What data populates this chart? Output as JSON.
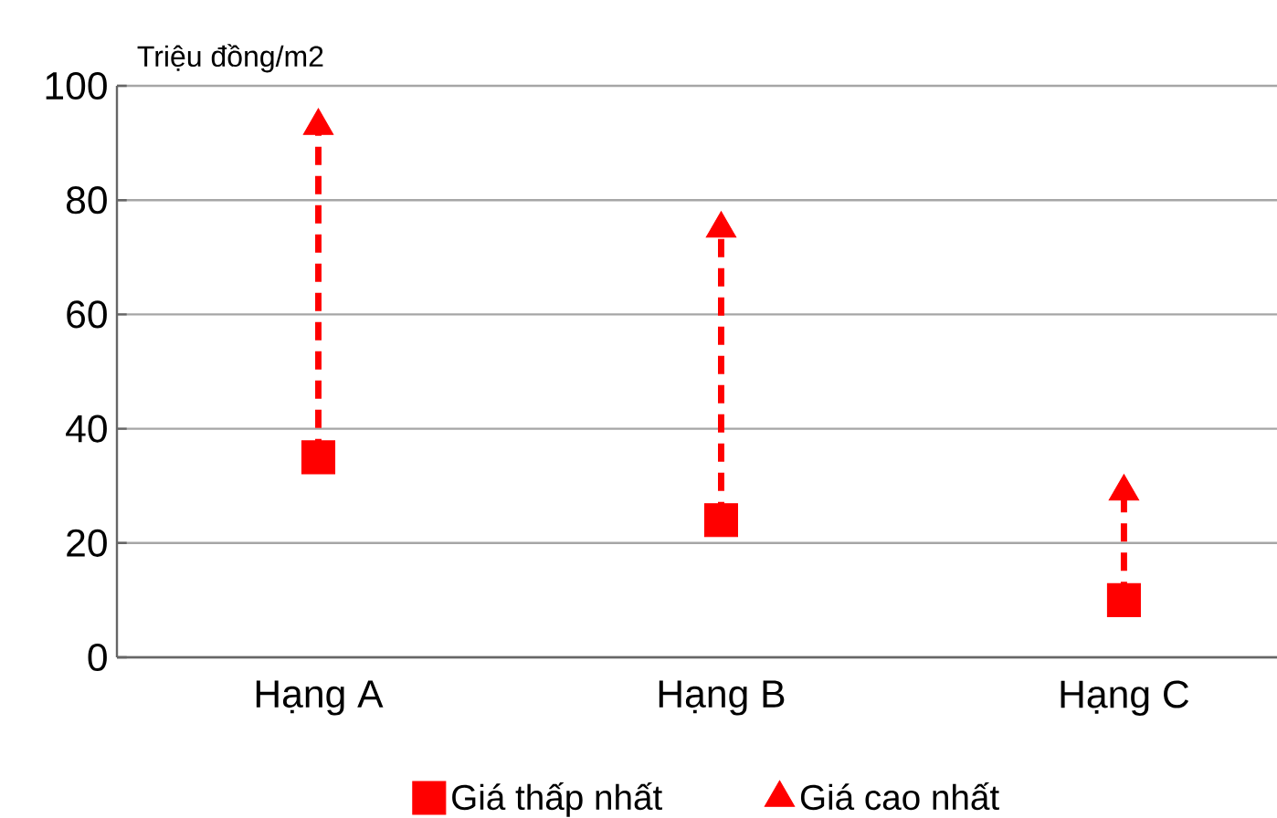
{
  "chart_data": {
    "type": "scatter",
    "ylabel": "Triệu đồng/m2",
    "categories": [
      "Hạng A",
      "Hạng B",
      "Hạng C"
    ],
    "ylim": [
      0,
      100
    ],
    "yticks": [
      0,
      20,
      40,
      60,
      80,
      100
    ],
    "grid": "y",
    "legend": "bottom",
    "line_style": "dashed",
    "series": [
      {
        "name": "Giá thấp nhất",
        "color": "#ff0000",
        "marker": "square",
        "values": [
          35,
          24,
          10
        ]
      },
      {
        "name": "Giá cao nhất",
        "color": "#ff0000",
        "marker": "triangle",
        "values": [
          93,
          75,
          29
        ]
      }
    ]
  }
}
